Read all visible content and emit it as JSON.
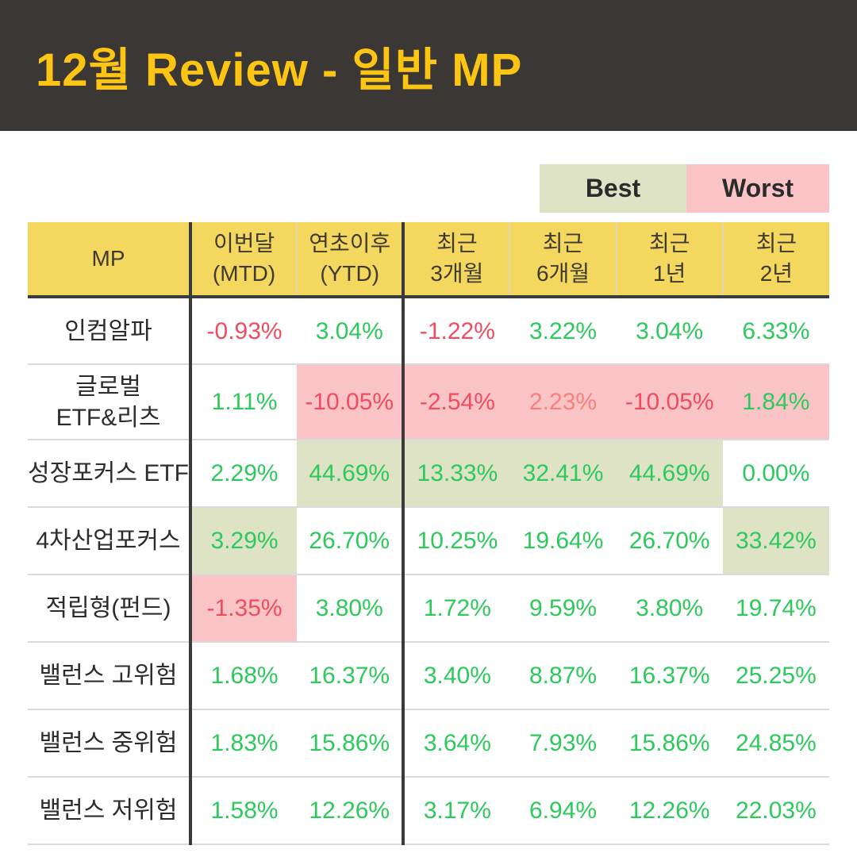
{
  "header": {
    "title": "12월 Review - 일반 MP"
  },
  "legend": {
    "best_label": "Best",
    "worst_label": "Worst"
  },
  "colors": {
    "header_bg": "#3b3734",
    "title_color": "#fdc513",
    "table_header_bg": "#f4d75e",
    "header_text": "#3f3b33",
    "name_text": "#2e2c2a",
    "positive": "#2dc95c",
    "negative": "#ef4d5f",
    "negative_soft": "#f5827f",
    "best_bg": "#dee3c6",
    "worst_bg": "#fac4c6",
    "border_dark": "#3a3a3a",
    "row_divider": "#dadada"
  },
  "table": {
    "columns": [
      {
        "line1": "MP",
        "line2": ""
      },
      {
        "line1": "이번달",
        "line2": "(MTD)"
      },
      {
        "line1": "연초이후",
        "line2": "(YTD)"
      },
      {
        "line1": "최근",
        "line2": "3개월"
      },
      {
        "line1": "최근",
        "line2": "6개월"
      },
      {
        "line1": "최근",
        "line2": "1년"
      },
      {
        "line1": "최근",
        "line2": "2년"
      }
    ],
    "rows": [
      {
        "name_lines": [
          "인컴알파"
        ],
        "values": [
          {
            "text": "-0.93%",
            "tone": "negative",
            "highlight": "none"
          },
          {
            "text": "3.04%",
            "tone": "positive",
            "highlight": "none"
          },
          {
            "text": "-1.22%",
            "tone": "negative",
            "highlight": "none"
          },
          {
            "text": "3.22%",
            "tone": "positive",
            "highlight": "none"
          },
          {
            "text": "3.04%",
            "tone": "positive",
            "highlight": "none"
          },
          {
            "text": "6.33%",
            "tone": "positive",
            "highlight": "none"
          }
        ]
      },
      {
        "name_lines": [
          "글로벌",
          "ETF&리츠"
        ],
        "values": [
          {
            "text": "1.11%",
            "tone": "positive",
            "highlight": "none"
          },
          {
            "text": "-10.05%",
            "tone": "negative",
            "highlight": "worst"
          },
          {
            "text": "-2.54%",
            "tone": "negative",
            "highlight": "worst"
          },
          {
            "text": "2.23%",
            "tone": "negative-soft",
            "highlight": "worst"
          },
          {
            "text": "-10.05%",
            "tone": "negative",
            "highlight": "worst"
          },
          {
            "text": "1.84%",
            "tone": "positive",
            "highlight": "worst"
          }
        ]
      },
      {
        "name_lines": [
          "성장포커스 ETF"
        ],
        "values": [
          {
            "text": "2.29%",
            "tone": "positive",
            "highlight": "none"
          },
          {
            "text": "44.69%",
            "tone": "positive",
            "highlight": "best"
          },
          {
            "text": "13.33%",
            "tone": "positive",
            "highlight": "best"
          },
          {
            "text": "32.41%",
            "tone": "positive",
            "highlight": "best"
          },
          {
            "text": "44.69%",
            "tone": "positive",
            "highlight": "best"
          },
          {
            "text": "0.00%",
            "tone": "positive",
            "highlight": "none"
          }
        ]
      },
      {
        "name_lines": [
          "4차산업포커스"
        ],
        "values": [
          {
            "text": "3.29%",
            "tone": "positive",
            "highlight": "best"
          },
          {
            "text": "26.70%",
            "tone": "positive",
            "highlight": "none"
          },
          {
            "text": "10.25%",
            "tone": "positive",
            "highlight": "none"
          },
          {
            "text": "19.64%",
            "tone": "positive",
            "highlight": "none"
          },
          {
            "text": "26.70%",
            "tone": "positive",
            "highlight": "none"
          },
          {
            "text": "33.42%",
            "tone": "positive",
            "highlight": "best"
          }
        ]
      },
      {
        "name_lines": [
          "적립형(펀드)"
        ],
        "values": [
          {
            "text": "-1.35%",
            "tone": "negative",
            "highlight": "worst"
          },
          {
            "text": "3.80%",
            "tone": "positive",
            "highlight": "none"
          },
          {
            "text": "1.72%",
            "tone": "positive",
            "highlight": "none"
          },
          {
            "text": "9.59%",
            "tone": "positive",
            "highlight": "none"
          },
          {
            "text": "3.80%",
            "tone": "positive",
            "highlight": "none"
          },
          {
            "text": "19.74%",
            "tone": "positive",
            "highlight": "none"
          }
        ]
      },
      {
        "name_lines": [
          "밸런스 고위험"
        ],
        "values": [
          {
            "text": "1.68%",
            "tone": "positive",
            "highlight": "none"
          },
          {
            "text": "16.37%",
            "tone": "positive",
            "highlight": "none"
          },
          {
            "text": "3.40%",
            "tone": "positive",
            "highlight": "none"
          },
          {
            "text": "8.87%",
            "tone": "positive",
            "highlight": "none"
          },
          {
            "text": "16.37%",
            "tone": "positive",
            "highlight": "none"
          },
          {
            "text": "25.25%",
            "tone": "positive",
            "highlight": "none"
          }
        ]
      },
      {
        "name_lines": [
          "밸런스 중위험"
        ],
        "values": [
          {
            "text": "1.83%",
            "tone": "positive",
            "highlight": "none"
          },
          {
            "text": "15.86%",
            "tone": "positive",
            "highlight": "none"
          },
          {
            "text": "3.64%",
            "tone": "positive",
            "highlight": "none"
          },
          {
            "text": "7.93%",
            "tone": "positive",
            "highlight": "none"
          },
          {
            "text": "15.86%",
            "tone": "positive",
            "highlight": "none"
          },
          {
            "text": "24.85%",
            "tone": "positive",
            "highlight": "none"
          }
        ]
      },
      {
        "name_lines": [
          "밸런스 저위험"
        ],
        "values": [
          {
            "text": "1.58%",
            "tone": "positive",
            "highlight": "none"
          },
          {
            "text": "12.26%",
            "tone": "positive",
            "highlight": "none"
          },
          {
            "text": "3.17%",
            "tone": "positive",
            "highlight": "none"
          },
          {
            "text": "6.94%",
            "tone": "positive",
            "highlight": "none"
          },
          {
            "text": "12.26%",
            "tone": "positive",
            "highlight": "none"
          },
          {
            "text": "22.03%",
            "tone": "positive",
            "highlight": "none"
          }
        ]
      }
    ]
  },
  "chart_data": {
    "type": "table",
    "title": "12월 Review - 일반 MP",
    "legend": [
      "Best",
      "Worst"
    ],
    "columns": [
      "MP",
      "이번달 (MTD)",
      "연초이후 (YTD)",
      "최근 3개월",
      "최근 6개월",
      "최근 1년",
      "최근 2년"
    ],
    "rows": [
      [
        "인컴알파",
        "-0.93%",
        "3.04%",
        "-1.22%",
        "3.22%",
        "3.04%",
        "6.33%"
      ],
      [
        "글로벌 ETF&리츠",
        "1.11%",
        "-10.05%",
        "-2.54%",
        "2.23%",
        "-10.05%",
        "1.84%"
      ],
      [
        "성장포커스 ETF",
        "2.29%",
        "44.69%",
        "13.33%",
        "32.41%",
        "44.69%",
        "0.00%"
      ],
      [
        "4차산업포커스",
        "3.29%",
        "26.70%",
        "10.25%",
        "19.64%",
        "26.70%",
        "33.42%"
      ],
      [
        "적립형(펀드)",
        "-1.35%",
        "3.80%",
        "1.72%",
        "9.59%",
        "3.80%",
        "19.74%"
      ],
      [
        "밸런스 고위험",
        "1.68%",
        "16.37%",
        "3.40%",
        "8.87%",
        "16.37%",
        "25.25%"
      ],
      [
        "밸런스 중위험",
        "1.83%",
        "15.86%",
        "3.64%",
        "7.93%",
        "15.86%",
        "24.85%"
      ],
      [
        "밸런스 저위험",
        "1.58%",
        "12.26%",
        "3.17%",
        "6.94%",
        "12.26%",
        "22.03%"
      ]
    ],
    "best_highlighted_cells": [
      [
        "성장포커스 ETF",
        [
          "연초이후 (YTD)",
          "최근 3개월",
          "최근 6개월",
          "최근 1년"
        ]
      ],
      [
        "4차산업포커스",
        [
          "이번달 (MTD)",
          "최근 2년"
        ]
      ]
    ],
    "worst_highlighted_cells": [
      [
        "글로벌 ETF&리츠",
        [
          "연초이후 (YTD)",
          "최근 3개월",
          "최근 6개월",
          "최근 1년",
          "최근 2년"
        ]
      ],
      [
        "적립형(펀드)",
        [
          "이번달 (MTD)"
        ]
      ]
    ]
  }
}
